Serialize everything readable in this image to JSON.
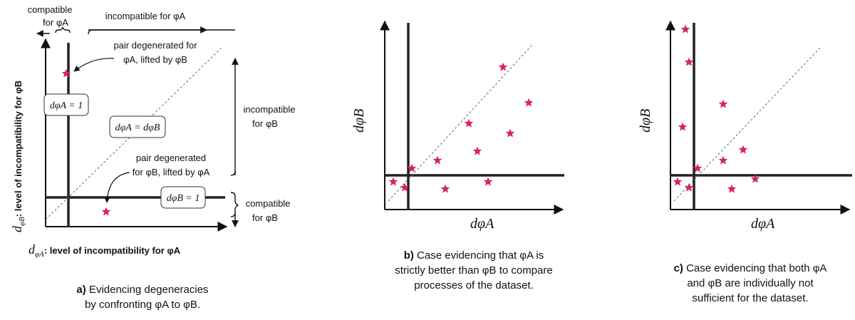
{
  "panel_a": {
    "ylabel_var": "d",
    "ylabel_sub": "φB",
    "ylabel_text": ": level of incompatibility for φB",
    "xlabel_var": "d",
    "xlabel_sub": "φA",
    "xlabel_text": ": level of incompatibility for φA",
    "compatible_A": "compatible",
    "compatible_A_for": "for φA",
    "incompatible_A": "incompatible for φA",
    "incompatible_B": "incompatible",
    "incompatible_B_for": "for φB",
    "compatible_B": "compatible",
    "compatible_B_for": "for φB",
    "ann1_line1": "pair degenerated for",
    "ann1_line2": "φA, lifted by φB",
    "ann2_line1": "pair degenerated",
    "ann2_line2": "for φB, lifted by φA",
    "box_dA": "dφA = 1",
    "box_diag": "dφA = dφB",
    "box_dB": "dφB = 1",
    "caption_prefix": "a)",
    "caption_line1": "Evidencing degeneracies",
    "caption_line2": "by confronting φA to φB."
  },
  "panel_b": {
    "xlabel": "dφA",
    "ylabel": "dφB",
    "caption_prefix": "b)",
    "caption_line1": "Case evidencing that φA is",
    "caption_line2": "strictly better than φB to compare",
    "caption_line3": "processes of the dataset."
  },
  "panel_c": {
    "xlabel": "dφA",
    "ylabel": "dφB",
    "caption_prefix": "c)",
    "caption_line1": "Case evidencing that both φA",
    "caption_line2": "and φB are individually not",
    "caption_line3": "sufficient for the dataset."
  },
  "colors": {
    "star": "#d6236e",
    "axis": "#111111",
    "diag": "#666666"
  }
}
